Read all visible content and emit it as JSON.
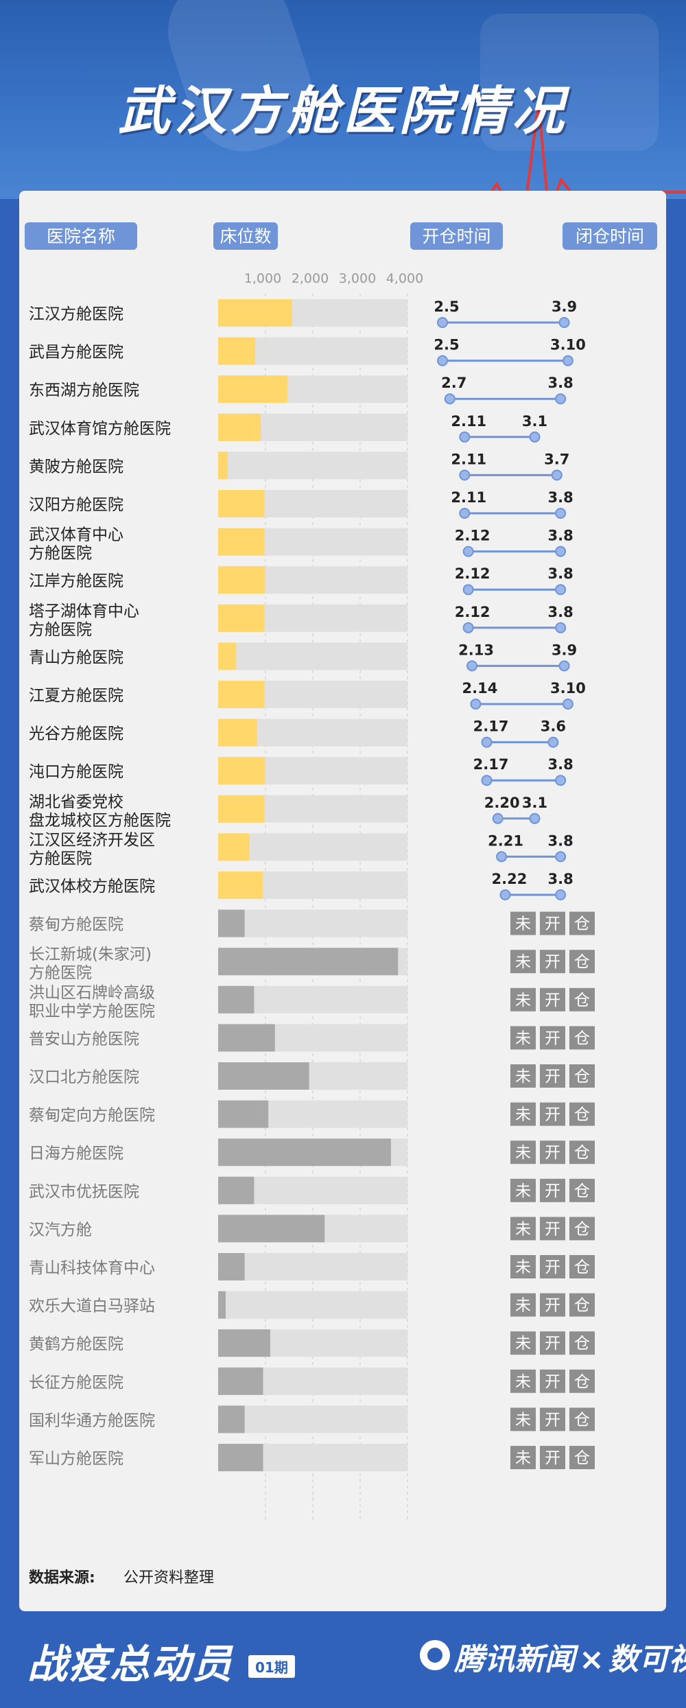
{
  "title": "武汉方舱医院情况",
  "headers": {
    "name": "医院名称",
    "beds": "床位数",
    "open": "开仓时间",
    "close": "闭仓时间"
  },
  "source_label": "数据来源",
  "source_text": "公开资料整理",
  "footer": {
    "campaign": "战疫总动员",
    "issue": "01期",
    "brand": "腾讯新闻",
    "times": "×",
    "partner": "数可视"
  },
  "colors": {
    "open_bar": "#ffd76b",
    "closed_bar": "#a9a9a9",
    "track": "#e0e0e0",
    "range": "#6f94d8",
    "header_tag": "#6f94d8",
    "background": "#2f62b8"
  },
  "chart_data": {
    "type": "bar",
    "x_axis": {
      "ticks": [
        1000,
        2000,
        3000,
        4000
      ],
      "tick_labels": [
        "1,000",
        "2,000",
        "3,000",
        "4,000"
      ],
      "range": [
        0,
        4000
      ]
    },
    "not_opened_label": [
      "未",
      "开",
      "仓"
    ],
    "hospitals": [
      {
        "name": [
          "江汉方舱医院"
        ],
        "beds": 1560,
        "open": "2.5",
        "close": "3.9",
        "opened": true,
        "open_day": 5,
        "close_day": 38
      },
      {
        "name": [
          "武昌方舱医院"
        ],
        "beds": 784,
        "open": "2.5",
        "close": "3.10",
        "opened": true,
        "open_day": 5,
        "close_day": 39
      },
      {
        "name": [
          "东西湖方舱医院"
        ],
        "beds": 1461,
        "open": "2.7",
        "close": "3.8",
        "opened": true,
        "open_day": 7,
        "close_day": 37
      },
      {
        "name": [
          "武汉体育馆方舱医院"
        ],
        "beds": 900,
        "open": "2.11",
        "close": "3.1",
        "opened": true,
        "open_day": 11,
        "close_day": 30
      },
      {
        "name": [
          "黄陂方舱医院"
        ],
        "beds": 200,
        "open": "2.11",
        "close": "3.7",
        "opened": true,
        "open_day": 11,
        "close_day": 36
      },
      {
        "name": [
          "汉阳方舱医院"
        ],
        "beds": 980,
        "open": "2.11",
        "close": "3.8",
        "opened": true,
        "open_day": 11,
        "close_day": 37
      },
      {
        "name": [
          "武汉体育中心",
          "方舱医院"
        ],
        "beds": 980,
        "open": "2.12",
        "close": "3.8",
        "opened": true,
        "open_day": 12,
        "close_day": 37
      },
      {
        "name": [
          "江岸方舱医院"
        ],
        "beds": 990,
        "open": "2.12",
        "close": "3.8",
        "opened": true,
        "open_day": 12,
        "close_day": 37
      },
      {
        "name": [
          "塔子湖体育中心",
          "方舱医院"
        ],
        "beds": 980,
        "open": "2.12",
        "close": "3.8",
        "opened": true,
        "open_day": 12,
        "close_day": 37
      },
      {
        "name": [
          "青山方舱医院"
        ],
        "beds": 380,
        "open": "2.13",
        "close": "3.9",
        "opened": true,
        "open_day": 13,
        "close_day": 38
      },
      {
        "name": [
          "江夏方舱医院"
        ],
        "beds": 980,
        "open": "2.14",
        "close": "3.10",
        "opened": true,
        "open_day": 14,
        "close_day": 39
      },
      {
        "name": [
          "光谷方舱医院"
        ],
        "beds": 820,
        "open": "2.17",
        "close": "3.6",
        "opened": true,
        "open_day": 17,
        "close_day": 35
      },
      {
        "name": [
          "沌口方舱医院"
        ],
        "beds": 990,
        "open": "2.17",
        "close": "3.8",
        "opened": true,
        "open_day": 17,
        "close_day": 37
      },
      {
        "name": [
          "湖北省委党校",
          "盘龙城校区方舱医院"
        ],
        "beds": 980,
        "open": "2.20",
        "close": "3.1",
        "opened": true,
        "open_day": 20,
        "close_day": 30
      },
      {
        "name": [
          "江汉区经济开发区",
          "方舱医院"
        ],
        "beds": 660,
        "open": "2.21",
        "close": "3.8",
        "opened": true,
        "open_day": 21,
        "close_day": 37
      },
      {
        "name": [
          "武汉体校方舱医院"
        ],
        "beds": 940,
        "open": "2.22",
        "close": "3.8",
        "opened": true,
        "open_day": 22,
        "close_day": 37
      },
      {
        "name": [
          "蔡甸方舱医院"
        ],
        "beds": 560,
        "opened": false
      },
      {
        "name": [
          "长江新城(朱家河)",
          "方舱医院"
        ],
        "beds": 3800,
        "opened": false
      },
      {
        "name": [
          "洪山区石牌岭高级",
          "职业中学方舱医院"
        ],
        "beds": 760,
        "opened": false
      },
      {
        "name": [
          "普安山方舱医院"
        ],
        "beds": 1200,
        "opened": false
      },
      {
        "name": [
          "汉口北方舱医院"
        ],
        "beds": 1920,
        "opened": false
      },
      {
        "name": [
          "蔡甸定向方舱医院"
        ],
        "beds": 1060,
        "opened": false
      },
      {
        "name": [
          "日海方舱医院"
        ],
        "beds": 3650,
        "opened": false
      },
      {
        "name": [
          "武汉市优抚医院"
        ],
        "beds": 760,
        "opened": false
      },
      {
        "name": [
          "汉汽方舱"
        ],
        "beds": 2250,
        "opened": false
      },
      {
        "name": [
          "青山科技体育中心"
        ],
        "beds": 560,
        "opened": false
      },
      {
        "name": [
          "欢乐大道白马驿站"
        ],
        "beds": 160,
        "opened": false
      },
      {
        "name": [
          "黄鹤方舱医院"
        ],
        "beds": 1100,
        "opened": false
      },
      {
        "name": [
          "长征方舱医院"
        ],
        "beds": 950,
        "opened": false
      },
      {
        "name": [
          "国利华通方舱医院"
        ],
        "beds": 560,
        "opened": false
      },
      {
        "name": [
          "军山方舱医院"
        ],
        "beds": 950,
        "opened": false
      }
    ]
  }
}
